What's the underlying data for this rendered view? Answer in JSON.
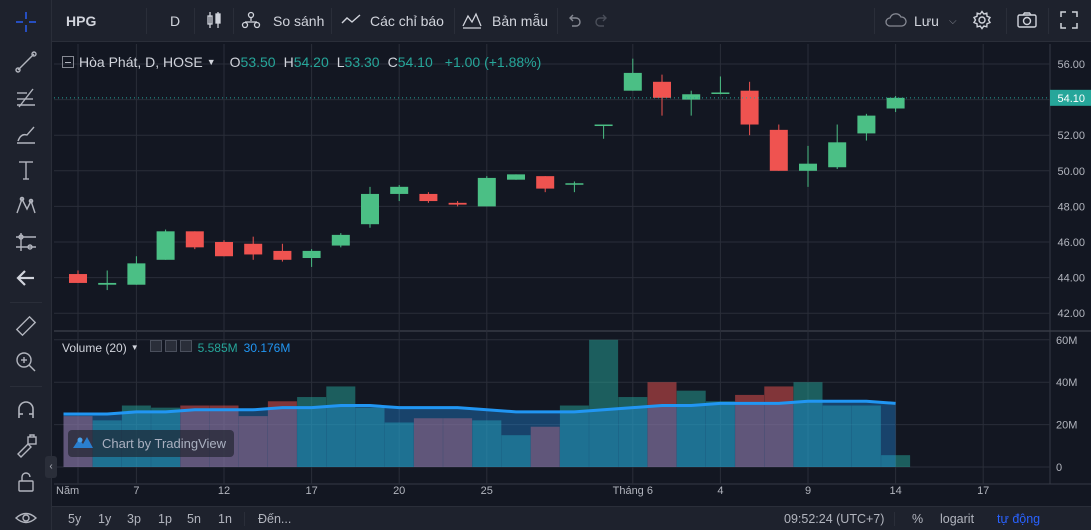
{
  "toolbar": {
    "symbol": "HPG",
    "interval": "D",
    "compare_label": "So sánh",
    "indicators_label": "Các chỉ báo",
    "templates_label": "Bản mẫu",
    "save_label": "Lưu"
  },
  "legend": {
    "title": "Hòa Phát, D, HOSE",
    "o_label": "O",
    "o_value": "53.50",
    "h_label": "H",
    "h_value": "54.20",
    "l_label": "L",
    "l_value": "53.30",
    "c_label": "C",
    "c_value": "54.10",
    "change": "+1.00 (+1.88%)"
  },
  "volume_legend": {
    "title": "Volume (20)",
    "value": "5.585M",
    "ma_value": "30.176M"
  },
  "watermark": "Chart by TradingView",
  "colors": {
    "up": "#26a69a",
    "up_body": "#4bbf85",
    "down": "#ef5350",
    "ma_line": "#2196f3",
    "last_price_bg": "#26a69a",
    "background": "#131722",
    "grid": "#2a2e39"
  },
  "bottom_bar": {
    "ranges": [
      "5y",
      "1y",
      "3p",
      "1p",
      "5n",
      "1n"
    ],
    "goto_label": "Đến...",
    "time": "09:52:24 (UTC+7)",
    "percent_label": "%",
    "log_label": "logarit",
    "auto_label": "tự động"
  },
  "icons": {
    "left": [
      "crosshair-icon",
      "trendline-icon",
      "fib-icon",
      "brush-icon",
      "text-icon",
      "pattern-icon",
      "prediction-icon",
      "back-arrow-icon",
      "ruler-icon",
      "zoom-in-icon",
      "magnet-icon",
      "lock-draw-icon",
      "lock-icon",
      "eye-icon"
    ],
    "top": [
      "candles-icon",
      "compare-icon",
      "indicators-icon",
      "templates-icon",
      "undo-icon",
      "redo-icon",
      "cloud-icon",
      "settings-icon",
      "camera-icon",
      "fullscreen-icon"
    ]
  },
  "chart_data": {
    "type": "candlestick",
    "symbol": "HPG",
    "price_ticks": [
      "56.00",
      "54.00",
      "52.00",
      "50.00",
      "48.00",
      "46.00",
      "44.00",
      "42.00"
    ],
    "last_price_label": "54.10",
    "volume_ticks": [
      "60M",
      "40M",
      "20M",
      "0"
    ],
    "x_ticks": [
      {
        "index": 0,
        "label": "Năm"
      },
      {
        "index": 2,
        "label": "7"
      },
      {
        "index": 5,
        "label": "12"
      },
      {
        "index": 8,
        "label": "17"
      },
      {
        "index": 11,
        "label": "20"
      },
      {
        "index": 14,
        "label": "25"
      },
      {
        "index": 19,
        "label": "Tháng 6"
      },
      {
        "index": 22,
        "label": "4"
      },
      {
        "index": 25,
        "label": "9"
      },
      {
        "index": 28,
        "label": "14"
      },
      {
        "index": 31,
        "label": "17"
      }
    ],
    "candles": [
      {
        "o": 44.2,
        "h": 44.4,
        "l": 43.7,
        "c": 43.7
      },
      {
        "o": 43.6,
        "h": 44.4,
        "l": 43.3,
        "c": 43.7
      },
      {
        "o": 43.6,
        "h": 45.2,
        "l": 43.6,
        "c": 44.8
      },
      {
        "o": 45.0,
        "h": 46.7,
        "l": 45.0,
        "c": 46.6
      },
      {
        "o": 46.6,
        "h": 46.6,
        "l": 45.6,
        "c": 45.7
      },
      {
        "o": 46.0,
        "h": 46.1,
        "l": 45.2,
        "c": 45.2
      },
      {
        "o": 45.9,
        "h": 46.3,
        "l": 45.0,
        "c": 45.3
      },
      {
        "o": 45.5,
        "h": 45.9,
        "l": 44.9,
        "c": 45.0
      },
      {
        "o": 45.1,
        "h": 45.6,
        "l": 44.6,
        "c": 45.5
      },
      {
        "o": 45.8,
        "h": 46.5,
        "l": 45.7,
        "c": 46.4
      },
      {
        "o": 47.0,
        "h": 49.1,
        "l": 46.8,
        "c": 48.7
      },
      {
        "o": 48.7,
        "h": 49.2,
        "l": 48.3,
        "c": 49.1
      },
      {
        "o": 48.7,
        "h": 48.8,
        "l": 48.2,
        "c": 48.3
      },
      {
        "o": 48.2,
        "h": 48.3,
        "l": 48.0,
        "c": 48.1
      },
      {
        "o": 48.0,
        "h": 49.7,
        "l": 48.0,
        "c": 49.6
      },
      {
        "o": 49.5,
        "h": 49.8,
        "l": 49.5,
        "c": 49.8
      },
      {
        "o": 49.7,
        "h": 49.7,
        "l": 48.8,
        "c": 49.0
      },
      {
        "o": 49.3,
        "h": 49.4,
        "l": 48.8,
        "c": 49.3
      },
      {
        "o": 52.6,
        "h": 52.6,
        "l": 51.8,
        "c": 52.6
      },
      {
        "o": 54.5,
        "h": 56.3,
        "l": 54.5,
        "c": 55.5
      },
      {
        "o": 55.0,
        "h": 55.4,
        "l": 53.1,
        "c": 54.1
      },
      {
        "o": 54.0,
        "h": 54.5,
        "l": 53.1,
        "c": 54.3
      },
      {
        "o": 54.4,
        "h": 55.3,
        "l": 54.3,
        "c": 54.4
      },
      {
        "o": 54.5,
        "h": 55.0,
        "l": 52.0,
        "c": 52.6
      },
      {
        "o": 52.3,
        "h": 52.6,
        "l": 50.0,
        "c": 50.0
      },
      {
        "o": 50.0,
        "h": 51.4,
        "l": 49.1,
        "c": 50.4
      },
      {
        "o": 50.2,
        "h": 52.6,
        "l": 50.1,
        "c": 51.6
      },
      {
        "o": 52.1,
        "h": 53.2,
        "l": 51.7,
        "c": 53.1
      },
      {
        "o": 53.5,
        "h": 54.2,
        "l": 53.3,
        "c": 54.1
      }
    ],
    "volumes": [
      {
        "v": 24,
        "up": false
      },
      {
        "v": 22,
        "up": true
      },
      {
        "v": 29,
        "up": true
      },
      {
        "v": 28,
        "up": true
      },
      {
        "v": 29,
        "up": false
      },
      {
        "v": 29,
        "up": false
      },
      {
        "v": 24,
        "up": false
      },
      {
        "v": 31,
        "up": false
      },
      {
        "v": 33,
        "up": true
      },
      {
        "v": 38,
        "up": true
      },
      {
        "v": 28,
        "up": true
      },
      {
        "v": 21,
        "up": true
      },
      {
        "v": 23,
        "up": false
      },
      {
        "v": 23,
        "up": false
      },
      {
        "v": 22,
        "up": true
      },
      {
        "v": 15,
        "up": true
      },
      {
        "v": 19,
        "up": false
      },
      {
        "v": 29,
        "up": true
      },
      {
        "v": 60,
        "up": true
      },
      {
        "v": 33,
        "up": true
      },
      {
        "v": 40,
        "up": false
      },
      {
        "v": 36,
        "up": true
      },
      {
        "v": 31,
        "up": true
      },
      {
        "v": 34,
        "up": false
      },
      {
        "v": 38,
        "up": false
      },
      {
        "v": 40,
        "up": true
      },
      {
        "v": 29,
        "up": true
      },
      {
        "v": 29,
        "up": true
      },
      {
        "v": 5.585,
        "up": true
      }
    ],
    "volume_ma": [
      25,
      25,
      26,
      26,
      27,
      27,
      27,
      28,
      28,
      29,
      29,
      28,
      28,
      28,
      27,
      26,
      26,
      26,
      27,
      28,
      29,
      29,
      30,
      30,
      30,
      31,
      31,
      31,
      30
    ]
  }
}
